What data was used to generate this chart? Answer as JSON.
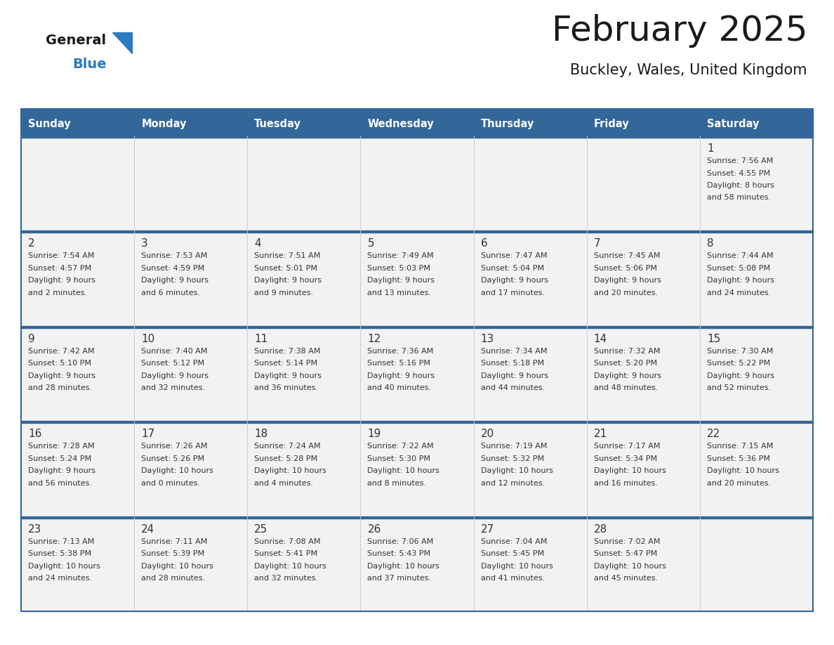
{
  "title": "February 2025",
  "subtitle": "Buckley, Wales, United Kingdom",
  "header_bg": "#336699",
  "header_text_color": "#ffffff",
  "day_names": [
    "Sunday",
    "Monday",
    "Tuesday",
    "Wednesday",
    "Thursday",
    "Friday",
    "Saturday"
  ],
  "cell_bg": "#f2f2f2",
  "row_sep_color": "#336699",
  "text_color": "#333333",
  "date_color": "#333333",
  "logo_general_color": "#1a1a1a",
  "logo_blue_color": "#2a7bbf",
  "calendar_data": [
    [
      {
        "day": null,
        "info": null
      },
      {
        "day": null,
        "info": null
      },
      {
        "day": null,
        "info": null
      },
      {
        "day": null,
        "info": null
      },
      {
        "day": null,
        "info": null
      },
      {
        "day": null,
        "info": null
      },
      {
        "day": 1,
        "info": "Sunrise: 7:56 AM\nSunset: 4:55 PM\nDaylight: 8 hours\nand 58 minutes."
      }
    ],
    [
      {
        "day": 2,
        "info": "Sunrise: 7:54 AM\nSunset: 4:57 PM\nDaylight: 9 hours\nand 2 minutes."
      },
      {
        "day": 3,
        "info": "Sunrise: 7:53 AM\nSunset: 4:59 PM\nDaylight: 9 hours\nand 6 minutes."
      },
      {
        "day": 4,
        "info": "Sunrise: 7:51 AM\nSunset: 5:01 PM\nDaylight: 9 hours\nand 9 minutes."
      },
      {
        "day": 5,
        "info": "Sunrise: 7:49 AM\nSunset: 5:03 PM\nDaylight: 9 hours\nand 13 minutes."
      },
      {
        "day": 6,
        "info": "Sunrise: 7:47 AM\nSunset: 5:04 PM\nDaylight: 9 hours\nand 17 minutes."
      },
      {
        "day": 7,
        "info": "Sunrise: 7:45 AM\nSunset: 5:06 PM\nDaylight: 9 hours\nand 20 minutes."
      },
      {
        "day": 8,
        "info": "Sunrise: 7:44 AM\nSunset: 5:08 PM\nDaylight: 9 hours\nand 24 minutes."
      }
    ],
    [
      {
        "day": 9,
        "info": "Sunrise: 7:42 AM\nSunset: 5:10 PM\nDaylight: 9 hours\nand 28 minutes."
      },
      {
        "day": 10,
        "info": "Sunrise: 7:40 AM\nSunset: 5:12 PM\nDaylight: 9 hours\nand 32 minutes."
      },
      {
        "day": 11,
        "info": "Sunrise: 7:38 AM\nSunset: 5:14 PM\nDaylight: 9 hours\nand 36 minutes."
      },
      {
        "day": 12,
        "info": "Sunrise: 7:36 AM\nSunset: 5:16 PM\nDaylight: 9 hours\nand 40 minutes."
      },
      {
        "day": 13,
        "info": "Sunrise: 7:34 AM\nSunset: 5:18 PM\nDaylight: 9 hours\nand 44 minutes."
      },
      {
        "day": 14,
        "info": "Sunrise: 7:32 AM\nSunset: 5:20 PM\nDaylight: 9 hours\nand 48 minutes."
      },
      {
        "day": 15,
        "info": "Sunrise: 7:30 AM\nSunset: 5:22 PM\nDaylight: 9 hours\nand 52 minutes."
      }
    ],
    [
      {
        "day": 16,
        "info": "Sunrise: 7:28 AM\nSunset: 5:24 PM\nDaylight: 9 hours\nand 56 minutes."
      },
      {
        "day": 17,
        "info": "Sunrise: 7:26 AM\nSunset: 5:26 PM\nDaylight: 10 hours\nand 0 minutes."
      },
      {
        "day": 18,
        "info": "Sunrise: 7:24 AM\nSunset: 5:28 PM\nDaylight: 10 hours\nand 4 minutes."
      },
      {
        "day": 19,
        "info": "Sunrise: 7:22 AM\nSunset: 5:30 PM\nDaylight: 10 hours\nand 8 minutes."
      },
      {
        "day": 20,
        "info": "Sunrise: 7:19 AM\nSunset: 5:32 PM\nDaylight: 10 hours\nand 12 minutes."
      },
      {
        "day": 21,
        "info": "Sunrise: 7:17 AM\nSunset: 5:34 PM\nDaylight: 10 hours\nand 16 minutes."
      },
      {
        "day": 22,
        "info": "Sunrise: 7:15 AM\nSunset: 5:36 PM\nDaylight: 10 hours\nand 20 minutes."
      }
    ],
    [
      {
        "day": 23,
        "info": "Sunrise: 7:13 AM\nSunset: 5:38 PM\nDaylight: 10 hours\nand 24 minutes."
      },
      {
        "day": 24,
        "info": "Sunrise: 7:11 AM\nSunset: 5:39 PM\nDaylight: 10 hours\nand 28 minutes."
      },
      {
        "day": 25,
        "info": "Sunrise: 7:08 AM\nSunset: 5:41 PM\nDaylight: 10 hours\nand 32 minutes."
      },
      {
        "day": 26,
        "info": "Sunrise: 7:06 AM\nSunset: 5:43 PM\nDaylight: 10 hours\nand 37 minutes."
      },
      {
        "day": 27,
        "info": "Sunrise: 7:04 AM\nSunset: 5:45 PM\nDaylight: 10 hours\nand 41 minutes."
      },
      {
        "day": 28,
        "info": "Sunrise: 7:02 AM\nSunset: 5:47 PM\nDaylight: 10 hours\nand 45 minutes."
      },
      {
        "day": null,
        "info": null
      }
    ]
  ]
}
